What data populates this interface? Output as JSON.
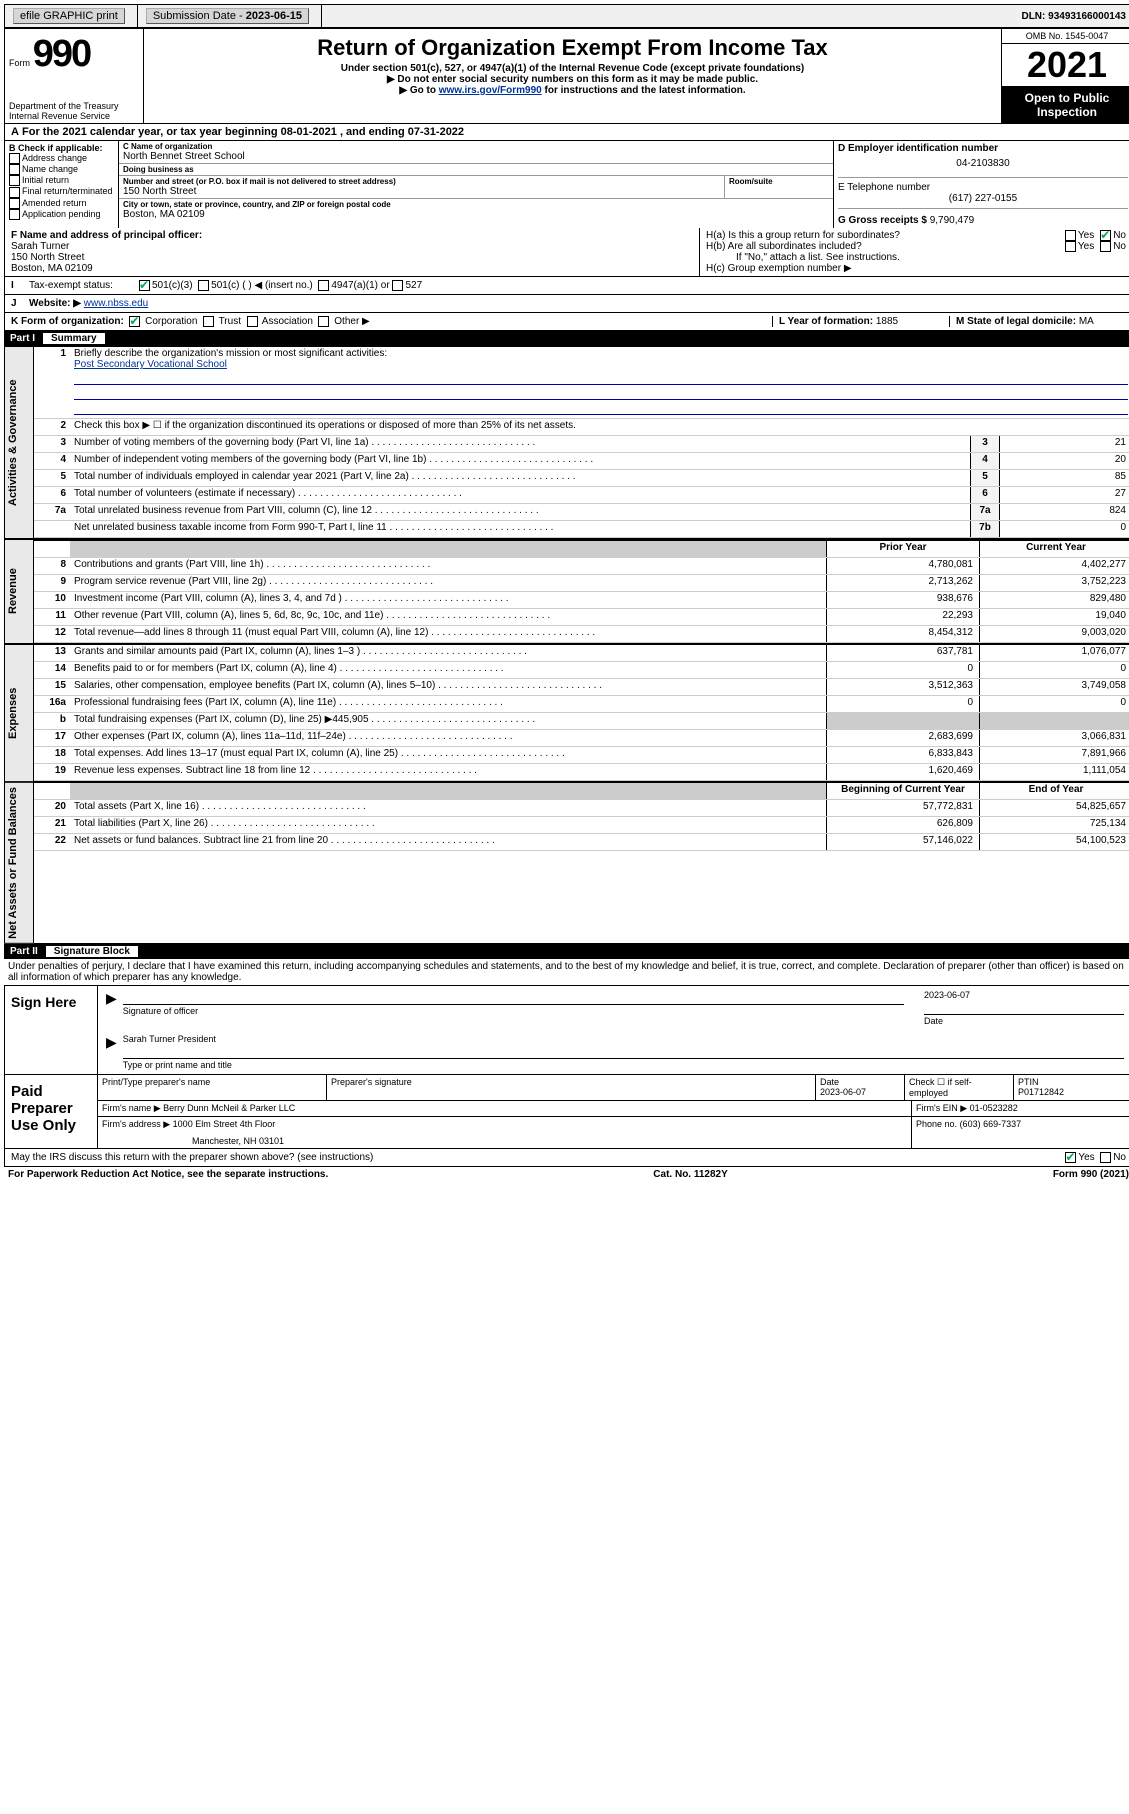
{
  "topbar": {
    "efile": "efile GRAPHIC print",
    "sub_label": "Submission Date - ",
    "sub_date": "2023-06-15",
    "dln": "DLN: 93493166000143"
  },
  "header": {
    "form_label": "Form",
    "form_no": "990",
    "dept": "Department of the Treasury",
    "irs": "Internal Revenue Service",
    "title": "Return of Organization Exempt From Income Tax",
    "sub1": "Under section 501(c), 527, or 4947(a)(1) of the Internal Revenue Code (except private foundations)",
    "sub2": "▶ Do not enter social security numbers on this form as it may be made public.",
    "sub3_pre": "▶ Go to ",
    "sub3_link": "www.irs.gov/Form990",
    "sub3_post": " for instructions and the latest information.",
    "omb": "OMB No. 1545-0047",
    "year": "2021",
    "open": "Open to Public Inspection"
  },
  "a_line": "For the 2021 calendar year, or tax year beginning 08-01-2021   , and ending 07-31-2022",
  "b": {
    "header": "B Check if applicable:",
    "items": [
      "Address change",
      "Name change",
      "Initial return",
      "Final return/terminated",
      "Amended return",
      "Application pending"
    ]
  },
  "c": {
    "name_label": "C Name of organization",
    "name": "North Bennet Street School",
    "dba_label": "Doing business as",
    "dba": "",
    "street_label": "Number and street (or P.O. box if mail is not delivered to street address)",
    "street": "150 North Street",
    "room_label": "Room/suite",
    "city_label": "City or town, state or province, country, and ZIP or foreign postal code",
    "city": "Boston, MA  02109"
  },
  "d": {
    "label": "D Employer identification number",
    "val": "04-2103830"
  },
  "e": {
    "label": "E Telephone number",
    "val": "(617) 227-0155"
  },
  "g": {
    "label": "G Gross receipts $",
    "val": "9,790,479"
  },
  "f": {
    "label": "F  Name and address of principal officer:",
    "name": "Sarah Turner",
    "street": "150 North Street",
    "city": "Boston, MA  02109"
  },
  "h": {
    "a": "H(a)  Is this a group return for subordinates?",
    "b": "H(b)  Are all subordinates included?",
    "note": "If \"No,\" attach a list. See instructions.",
    "c": "H(c)  Group exemption number ▶"
  },
  "i": {
    "label": "Tax-exempt status:",
    "c501c3": "501(c)(3)",
    "c501c": "501(c) (  ) ◀ (insert no.)",
    "c4947": "4947(a)(1) or",
    "c527": "527"
  },
  "j": {
    "label": "Website: ▶",
    "val": "www.nbss.edu"
  },
  "k": {
    "label": "K Form of organization:",
    "corp": "Corporation",
    "trust": "Trust",
    "assoc": "Association",
    "other": "Other ▶"
  },
  "l": {
    "label": "L Year of formation:",
    "val": "1885"
  },
  "m": {
    "label": "M State of legal domicile:",
    "val": "MA"
  },
  "part1": {
    "part": "Part I",
    "title": "Summary",
    "line1_label": "Briefly describe the organization's mission or most significant activities:",
    "line1_val": "Post Secondary Vocational School",
    "line2": "Check this box ▶ ☐  if the organization discontinued its operations or disposed of more than 25% of its net assets.",
    "rows_single": [
      {
        "no": "3",
        "text": "Number of voting members of the governing body (Part VI, line 1a)",
        "lbl": "3",
        "val": "21"
      },
      {
        "no": "4",
        "text": "Number of independent voting members of the governing body (Part VI, line 1b)",
        "lbl": "4",
        "val": "20"
      },
      {
        "no": "5",
        "text": "Total number of individuals employed in calendar year 2021 (Part V, line 2a)",
        "lbl": "5",
        "val": "85"
      },
      {
        "no": "6",
        "text": "Total number of volunteers (estimate if necessary)",
        "lbl": "6",
        "val": "27"
      },
      {
        "no": "7a",
        "text": "Total unrelated business revenue from Part VIII, column (C), line 12",
        "lbl": "7a",
        "val": "824"
      },
      {
        "no": "",
        "text": "Net unrelated business taxable income from Form 990-T, Part I, line 11",
        "lbl": "7b",
        "val": "0"
      }
    ],
    "col_head_prior": "Prior Year",
    "col_head_current": "Current Year",
    "revenue": [
      {
        "no": "8",
        "text": "Contributions and grants (Part VIII, line 1h)",
        "a": "4,780,081",
        "b": "4,402,277"
      },
      {
        "no": "9",
        "text": "Program service revenue (Part VIII, line 2g)",
        "a": "2,713,262",
        "b": "3,752,223"
      },
      {
        "no": "10",
        "text": "Investment income (Part VIII, column (A), lines 3, 4, and 7d )",
        "a": "938,676",
        "b": "829,480"
      },
      {
        "no": "11",
        "text": "Other revenue (Part VIII, column (A), lines 5, 6d, 8c, 9c, 10c, and 11e)",
        "a": "22,293",
        "b": "19,040"
      },
      {
        "no": "12",
        "text": "Total revenue—add lines 8 through 11 (must equal Part VIII, column (A), line 12)",
        "a": "8,454,312",
        "b": "9,003,020"
      }
    ],
    "expenses": [
      {
        "no": "13",
        "text": "Grants and similar amounts paid (Part IX, column (A), lines 1–3 )",
        "a": "637,781",
        "b": "1,076,077"
      },
      {
        "no": "14",
        "text": "Benefits paid to or for members (Part IX, column (A), line 4)",
        "a": "0",
        "b": "0"
      },
      {
        "no": "15",
        "text": "Salaries, other compensation, employee benefits (Part IX, column (A), lines 5–10)",
        "a": "3,512,363",
        "b": "3,749,058"
      },
      {
        "no": "16a",
        "text": "Professional fundraising fees (Part IX, column (A), line 11e)",
        "a": "0",
        "b": "0"
      },
      {
        "no": "b",
        "text": "Total fundraising expenses (Part IX, column (D), line 25) ▶445,905",
        "a": "",
        "b": "",
        "shade": true
      },
      {
        "no": "17",
        "text": "Other expenses (Part IX, column (A), lines 11a–11d, 11f–24e)",
        "a": "2,683,699",
        "b": "3,066,831"
      },
      {
        "no": "18",
        "text": "Total expenses. Add lines 13–17 (must equal Part IX, column (A), line 25)",
        "a": "6,833,843",
        "b": "7,891,966"
      },
      {
        "no": "19",
        "text": "Revenue less expenses. Subtract line 18 from line 12",
        "a": "1,620,469",
        "b": "1,111,054"
      }
    ],
    "col_head_begin": "Beginning of Current Year",
    "col_head_end": "End of Year",
    "netassets": [
      {
        "no": "20",
        "text": "Total assets (Part X, line 16)",
        "a": "57,772,831",
        "b": "54,825,657"
      },
      {
        "no": "21",
        "text": "Total liabilities (Part X, line 26)",
        "a": "626,809",
        "b": "725,134"
      },
      {
        "no": "22",
        "text": "Net assets or fund balances. Subtract line 21 from line 20",
        "a": "57,146,022",
        "b": "54,100,523"
      }
    ]
  },
  "vtabs": {
    "gov": "Activities & Governance",
    "rev": "Revenue",
    "exp": "Expenses",
    "net": "Net Assets or Fund Balances"
  },
  "part2": {
    "part": "Part II",
    "title": "Signature Block",
    "decl": "Under penalties of perjury, I declare that I have examined this return, including accompanying schedules and statements, and to the best of my knowledge and belief, it is true, correct, and complete. Declaration of preparer (other than officer) is based on all information of which preparer has any knowledge."
  },
  "sign": {
    "here": "Sign Here",
    "sig_label": "Signature of officer",
    "date": "2023-06-07",
    "date_label": "Date",
    "name": "Sarah Turner  President",
    "name_label": "Type or print name and title"
  },
  "paid": {
    "label": "Paid Preparer Use Only",
    "h1": "Print/Type preparer's name",
    "h2": "Preparer's signature",
    "h3": "Date",
    "date": "2023-06-07",
    "h4": "Check ☐ if self-employed",
    "h5": "PTIN",
    "ptin": "P01712842",
    "firm_label": "Firm's name     ▶",
    "firm": "Berry Dunn McNeil & Parker LLC",
    "ein_label": "Firm's EIN ▶",
    "ein": "01-0523282",
    "addr_label": "Firm's address ▶",
    "addr1": "1000 Elm Street 4th Floor",
    "addr2": "Manchester, NH  03101",
    "phone_label": "Phone no.",
    "phone": "(603) 669-7337"
  },
  "discuss": {
    "text": "May the IRS discuss this return with the preparer shown above? (see instructions)",
    "yes": "Yes",
    "no": "No"
  },
  "footer": {
    "left": "For Paperwork Reduction Act Notice, see the separate instructions.",
    "mid": "Cat. No. 11282Y",
    "right": "Form 990 (2021)"
  }
}
